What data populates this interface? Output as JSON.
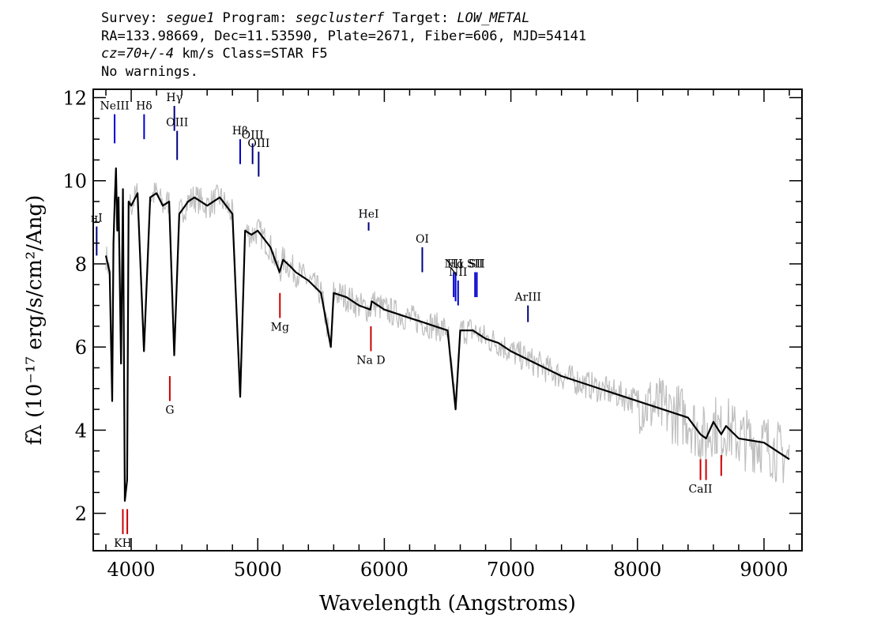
{
  "header": {
    "survey_label": "Survey: ",
    "survey": "segue1",
    "program_label": " Program: ",
    "program": "segclusterf",
    "target_label": " Target: ",
    "target": "LOW_METAL",
    "line2": "RA=133.98669, Dec=11.53590, Plate=2671, Fiber=606, MJD=54141",
    "cz": "cz=70+/-4",
    "cz_rest": " km/s Class=STAR F5",
    "line4": "No warnings."
  },
  "chart_data": {
    "type": "line",
    "xlabel": "Wavelength (Angstroms)",
    "ylabel": "fλ (10⁻¹⁷ erg/s/cm²/Ang)",
    "xlim": [
      3700,
      9300
    ],
    "ylim": [
      1.1,
      12.2
    ],
    "xticks": [
      "4000",
      "5000",
      "6000",
      "7000",
      "8000",
      "9000"
    ],
    "yticks": [
      "2",
      "4",
      "6",
      "8",
      "10",
      "12"
    ],
    "series": [
      {
        "color": "#000000",
        "x": [
          3800,
          3830,
          3850,
          3860,
          3870,
          3880,
          3890,
          3900,
          3920,
          3935,
          3950,
          3968,
          3980,
          4000,
          4050,
          4101,
          4150,
          4200,
          4250,
          4300,
          4340,
          4380,
          4450,
          4500,
          4600,
          4700,
          4800,
          4861,
          4900,
          4950,
          5000,
          5100,
          5172,
          5200,
          5270,
          5300,
          5400,
          5500,
          5577,
          5600,
          5700,
          5800,
          5890,
          5900,
          6000,
          6100,
          6200,
          6300,
          6400,
          6500,
          6563,
          6600,
          6700,
          6800,
          6900,
          7000,
          7200,
          7400,
          7600,
          7800,
          8000,
          8200,
          8400,
          8498,
          8542,
          8600,
          8662,
          8700,
          8800,
          9000,
          9200
        ],
        "y": [
          8.2,
          7.8,
          4.7,
          8.5,
          9.5,
          10.3,
          8.8,
          9.6,
          5.6,
          9.8,
          2.3,
          2.8,
          9.5,
          9.4,
          9.7,
          5.9,
          9.6,
          9.7,
          9.4,
          9.5,
          5.8,
          9.2,
          9.5,
          9.6,
          9.4,
          9.6,
          9.2,
          4.8,
          8.8,
          8.7,
          8.8,
          8.4,
          7.8,
          8.1,
          7.9,
          7.8,
          7.6,
          7.3,
          6.0,
          7.3,
          7.2,
          7.0,
          6.9,
          7.1,
          6.9,
          6.8,
          6.7,
          6.6,
          6.5,
          6.4,
          4.5,
          6.4,
          6.4,
          6.2,
          6.1,
          5.9,
          5.6,
          5.3,
          5.1,
          4.9,
          4.7,
          4.5,
          4.3,
          3.9,
          3.8,
          4.2,
          3.9,
          4.1,
          3.8,
          3.7,
          3.3
        ]
      },
      {
        "color": "#bfbfbf",
        "noise": 0.35
      }
    ],
    "line_markers": [
      {
        "label": "нI",
        "x": 3727,
        "top": 8.9,
        "bottom": 8.2,
        "color": "#000080",
        "pos": "above"
      },
      {
        "label": "NeIII",
        "x": 3869,
        "top": 11.6,
        "bottom": 10.9,
        "color": "#0000cc",
        "pos": "above"
      },
      {
        "label": "Hδ",
        "x": 4102,
        "top": 11.6,
        "bottom": 11.0,
        "color": "#0000cc",
        "pos": "above"
      },
      {
        "label": "Hγ",
        "x": 4341,
        "top": 11.8,
        "bottom": 11.2,
        "color": "#000080",
        "pos": "above"
      },
      {
        "label": "OIII",
        "x": 4363,
        "top": 11.2,
        "bottom": 10.5,
        "color": "#000080",
        "pos": "above"
      },
      {
        "label": "Hβ",
        "x": 4861,
        "top": 11.0,
        "bottom": 10.4,
        "color": "#0000cc",
        "pos": "above"
      },
      {
        "label": "OIII",
        "x": 4959,
        "top": 10.9,
        "bottom": 10.4,
        "color": "#000080",
        "pos": "above"
      },
      {
        "label": "OIII",
        "x": 5007,
        "top": 10.7,
        "bottom": 10.1,
        "color": "#000080",
        "pos": "above"
      },
      {
        "label": "HeI",
        "x": 5876,
        "top": 9.0,
        "bottom": 8.8,
        "color": "#000080",
        "pos": "above"
      },
      {
        "label": "OI",
        "x": 6300,
        "top": 8.4,
        "bottom": 7.8,
        "color": "#000080",
        "pos": "above"
      },
      {
        "label": "NII",
        "x": 6548,
        "top": 7.8,
        "bottom": 7.2,
        "color": "#0000cc",
        "pos": "above"
      },
      {
        "label": "Hα",
        "x": 6563,
        "top": 7.8,
        "bottom": 7.1,
        "color": "#0000cc",
        "pos": "above"
      },
      {
        "label": "NII",
        "x": 6583,
        "top": 7.6,
        "bottom": 7.0,
        "color": "#0000cc",
        "pos": "above"
      },
      {
        "label": "SII",
        "x": 6717,
        "top": 7.8,
        "bottom": 7.2,
        "color": "#0000cc",
        "pos": "above"
      },
      {
        "label": "SII",
        "x": 6731,
        "top": 7.8,
        "bottom": 7.2,
        "color": "#0000cc",
        "pos": "above"
      },
      {
        "label": "ArIII",
        "x": 7135,
        "top": 7.0,
        "bottom": 6.6,
        "color": "#000080",
        "pos": "above"
      },
      {
        "label": "KH",
        "x": 3934,
        "top": 2.1,
        "bottom": 1.5,
        "color": "#cc0000",
        "pos": "below"
      },
      {
        "label": "",
        "x": 3969,
        "top": 2.1,
        "bottom": 1.5,
        "color": "#cc0000",
        "pos": "below"
      },
      {
        "label": "G",
        "x": 4305,
        "top": 5.3,
        "bottom": 4.7,
        "color": "#cc0000",
        "pos": "below"
      },
      {
        "label": "Mg",
        "x": 5175,
        "top": 7.3,
        "bottom": 6.7,
        "color": "#cc0000",
        "pos": "below"
      },
      {
        "label": "Na D",
        "x": 5894,
        "top": 6.5,
        "bottom": 5.9,
        "color": "#cc0000",
        "pos": "below"
      },
      {
        "label": "CaII",
        "x": 8498,
        "top": 3.3,
        "bottom": 2.8,
        "color": "#cc0000",
        "pos": "below"
      },
      {
        "label": "",
        "x": 8542,
        "top": 3.3,
        "bottom": 2.8,
        "color": "#cc0000",
        "pos": "below"
      },
      {
        "label": "",
        "x": 8662,
        "top": 3.4,
        "bottom": 2.9,
        "color": "#cc0000",
        "pos": "below"
      }
    ]
  }
}
